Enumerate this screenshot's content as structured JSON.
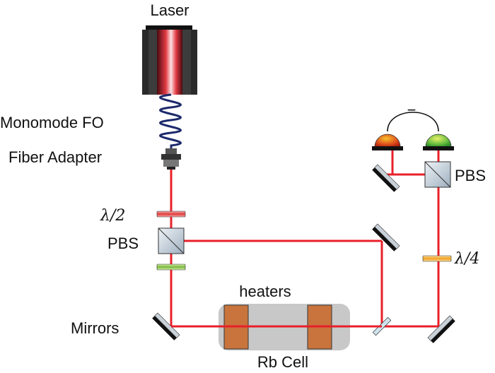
{
  "labels": {
    "laser": "Laser",
    "fiber": "Monomode FO",
    "adapter": "Fiber Adapter",
    "half_wave": "λ/2",
    "pbs_left": "PBS",
    "pbs_right": "PBS",
    "quarter_wave": "λ/4",
    "mirrors": "Mirrors",
    "heaters": "heaters",
    "cell": "Rb Cell",
    "minus": "−"
  },
  "colors": {
    "beam": "#e8202a",
    "heater": "#c8743c",
    "cell_glass": "#c8c8c8",
    "optic_dark": "#222222",
    "pbs_fill": "#cfd8e0",
    "detector_red": "#d83a1e",
    "detector_green": "#3a9a3a",
    "fiber": "#1c2a6b"
  }
}
